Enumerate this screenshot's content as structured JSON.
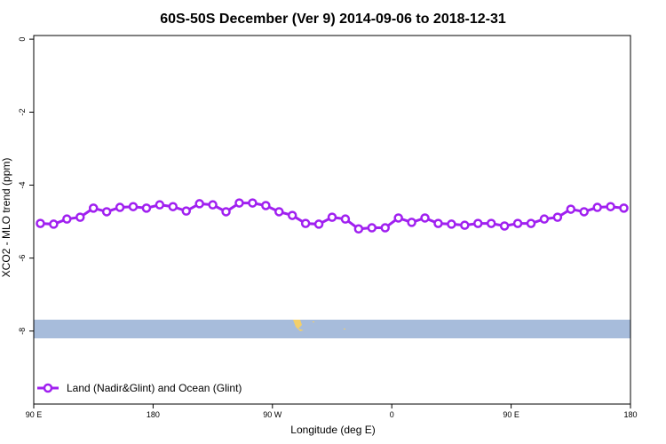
{
  "chart_data": {
    "type": "line",
    "title": "60S-50S December (Ver 9)   2014-09-06 to 2018-12-31",
    "x_label": "Longitude (deg E)",
    "y_label": "XCO2 - MLO trend (ppm)",
    "x": [
      95,
      105,
      115,
      125,
      135,
      145,
      155,
      165,
      175,
      185,
      195,
      205,
      215,
      225,
      235,
      245,
      255,
      265,
      275,
      285,
      295,
      305,
      315,
      325,
      335,
      345,
      355,
      365,
      375,
      385,
      395,
      405,
      415,
      425,
      435,
      445,
      455,
      465,
      475,
      485,
      495,
      505,
      515,
      525,
      535
    ],
    "series": [
      {
        "name": "Land (Nadir&Glint) and Ocean (Glint)",
        "color": "#a020f0",
        "values": [
          -5.05,
          -5.07,
          -4.93,
          -4.88,
          -4.63,
          -4.73,
          -4.61,
          -4.59,
          -4.63,
          -4.54,
          -4.59,
          -4.71,
          -4.51,
          -4.54,
          -4.73,
          -4.49,
          -4.49,
          -4.56,
          -4.73,
          -4.83,
          -5.05,
          -5.07,
          -4.88,
          -4.93,
          -5.2,
          -5.17,
          -5.17,
          -4.9,
          -5.02,
          -4.9,
          -5.05,
          -5.07,
          -5.1,
          -5.05,
          -5.05,
          -5.12,
          -5.05,
          -5.05,
          -4.93,
          -4.88,
          -4.66,
          -4.73,
          -4.61,
          -4.59,
          -4.63
        ]
      }
    ],
    "xlim": [
      90,
      540
    ],
    "ylim": [
      -10,
      0.1
    ],
    "xticks": [
      {
        "value": 90,
        "label": "90 E"
      },
      180,
      {
        "value": 270,
        "label": "90 W"
      },
      {
        "value": 360,
        "label": "0"
      },
      {
        "value": 450,
        "label": "90 E"
      },
      {
        "value": 540,
        "label": "180"
      }
    ],
    "yticks": [
      0,
      -2,
      -4,
      -6,
      -8
    ],
    "legend": "bottom-left"
  }
}
